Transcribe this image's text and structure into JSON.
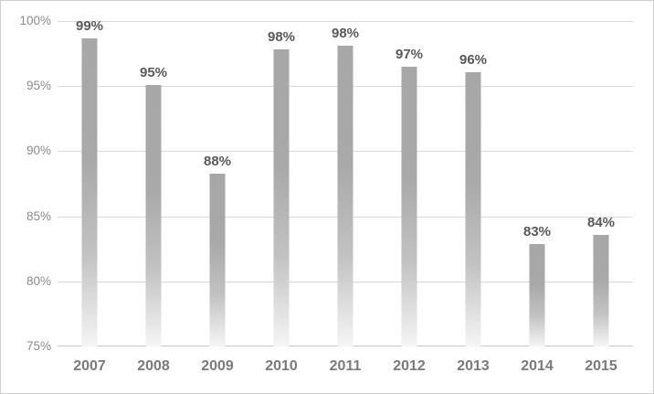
{
  "chart_data": {
    "type": "bar",
    "title": "",
    "xlabel": "",
    "ylabel": "",
    "categories": [
      "2007",
      "2008",
      "2009",
      "2010",
      "2011",
      "2012",
      "2013",
      "2014",
      "2015"
    ],
    "values": [
      99,
      95,
      88,
      98,
      98,
      97,
      96,
      83,
      84
    ],
    "data_labels": [
      "99%",
      "95%",
      "88%",
      "98%",
      "98%",
      "97%",
      "96%",
      "83%",
      "84%"
    ],
    "render_values": [
      98.7,
      95.1,
      88.3,
      97.8,
      98.1,
      96.5,
      96.1,
      82.9,
      83.6
    ],
    "ylim": [
      75,
      100
    ],
    "ytick_labels": [
      "100%",
      "95%",
      "90%",
      "85%",
      "80%",
      "75%"
    ],
    "ytick_values": [
      100,
      95,
      90,
      85,
      80,
      75
    ],
    "grid": true,
    "legend": false,
    "colors": {
      "bar_top": "#a7a7a7",
      "bar_bottom": "#f5f5f5",
      "gridline": "#d9d9d9",
      "axis_line": "#c6c6c6",
      "data_label": "#595959",
      "tick_label": "#8b8b8b",
      "category_label": "#7b7b7b",
      "background": "#ffffff",
      "border": "#cfcfcf"
    }
  }
}
